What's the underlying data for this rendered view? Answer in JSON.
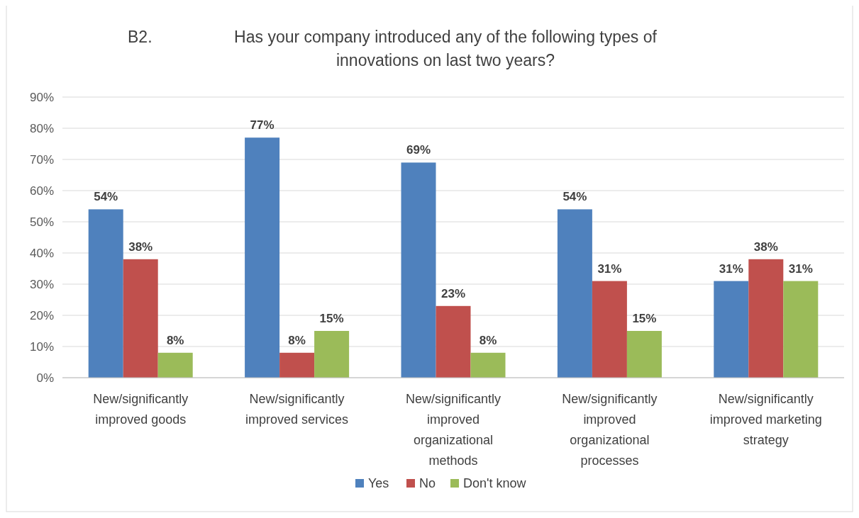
{
  "chart_data": {
    "type": "bar",
    "title": "Has your company introduced any of the following types of innovations on last two years?",
    "annotations": [
      "B2."
    ],
    "categories": [
      "New/significantly improved goods",
      "New/significantly improved services",
      "New/significantly improved organizational methods",
      "New/significantly improved organizational processes",
      "New/significantly improved marketing strategy"
    ],
    "series": [
      {
        "name": "Yes",
        "color": "#4f81bd",
        "values": [
          54,
          77,
          69,
          54,
          31
        ],
        "value_labels": [
          "54%",
          "77%",
          "69%",
          "54%",
          "31%"
        ]
      },
      {
        "name": "No",
        "color": "#c0504d",
        "values": [
          38,
          8,
          23,
          31,
          38
        ],
        "value_labels": [
          "38%",
          "8%",
          "23%",
          "31%",
          "38%"
        ]
      },
      {
        "name": "Don't know",
        "color": "#9bbb59",
        "values": [
          8,
          15,
          8,
          15,
          31
        ],
        "value_labels": [
          "8%",
          "15%",
          "8%",
          "15%",
          "31%"
        ]
      }
    ],
    "ylim": [
      0,
      90
    ],
    "yticks": [
      {
        "value": 0,
        "label": "0%"
      },
      {
        "value": 10,
        "label": "10%"
      },
      {
        "value": 20,
        "label": "20%"
      },
      {
        "value": 30,
        "label": "30%"
      },
      {
        "value": 40,
        "label": "40%"
      },
      {
        "value": 50,
        "label": "50%"
      },
      {
        "value": 60,
        "label": "60%"
      },
      {
        "value": 70,
        "label": "70%"
      },
      {
        "value": 80,
        "label": "80%"
      },
      {
        "value": 90,
        "label": "90%"
      }
    ],
    "grid": "y",
    "legend": "bottom"
  }
}
